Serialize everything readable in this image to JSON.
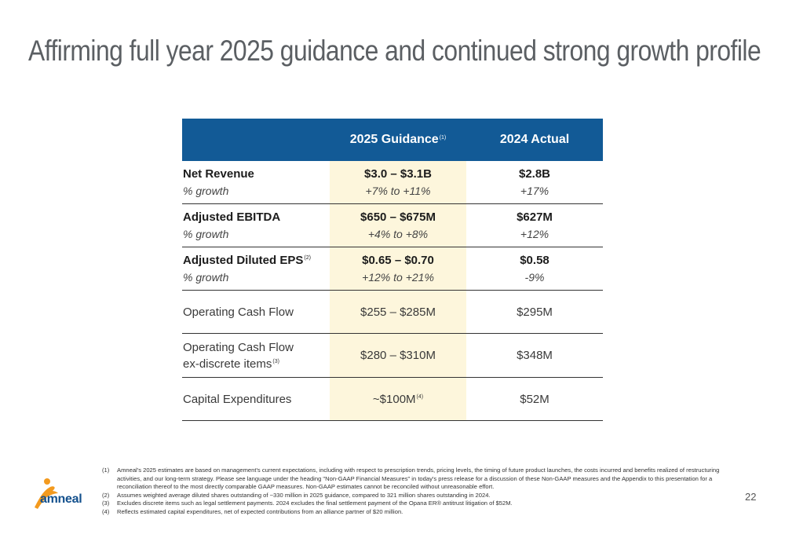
{
  "title": "Affirming full year 2025 guidance and continued strong growth profile",
  "table": {
    "header": {
      "col1": "",
      "col2": "2025 Guidance",
      "col2_fn": "(1)",
      "col3": "2024 Actual"
    },
    "rows": [
      {
        "label": "Net Revenue",
        "sub": "% growth",
        "g": "$3.0 – $3.1B",
        "g_sub": "+7% to +11%",
        "a": "$2.8B",
        "a_sub": "+17%"
      },
      {
        "label": "Adjusted EBITDA",
        "sub": "% growth",
        "g": "$650 – $675M",
        "g_sub": "+4% to +8%",
        "a": "$627M",
        "a_sub": "+12%"
      },
      {
        "label": "Adjusted Diluted EPS",
        "label_fn": "(2)",
        "sub": "% growth",
        "g": "$0.65 – $0.70",
        "g_sub": "+12% to +21%",
        "a": "$0.58",
        "a_sub": "-9%"
      },
      {
        "label": "Operating Cash Flow",
        "g": "$255 – $285M",
        "a": "$295M"
      },
      {
        "label": "Operating Cash Flow",
        "label2": "ex-discrete items",
        "label_fn": "(3)",
        "g": "$280 – $310M",
        "a": "$348M"
      },
      {
        "label": "Capital Expenditures",
        "g": "~$100M",
        "g_fn": "(4)",
        "a": "$52M"
      }
    ]
  },
  "footnotes": [
    {
      "num": "(1)",
      "text": "Amneal's 2025 estimates are based on management's current expectations, including with respect to prescription trends, pricing levels, the timing of future product launches, the costs incurred and benefits realized of restructuring activities, and our long-term strategy. Please see language under the heading \"Non-GAAP Financial Measures\" in today's press release for a discussion of these Non-GAAP measures and the Appendix to this presentation for a reconciliation thereof to the most directly comparable GAAP measures. Non-GAAP estimates cannot be reconciled without unreasonable effort."
    },
    {
      "num": "(2)",
      "text": "Assumes weighted average diluted shares outstanding of ~330 million in 2025 guidance, compared to 321 million shares outstanding in 2024."
    },
    {
      "num": "(3)",
      "text": "Excludes discrete items such as legal settlement payments. 2024 excludes the final settlement payment of the Opana ER® antitrust litigation of $52M."
    },
    {
      "num": "(4)",
      "text": "Reflects estimated capital expenditures, net of expected contributions from an alliance partner of $20 million."
    }
  ],
  "logo": {
    "word": "amneal",
    "mark": "®"
  },
  "page_number": "22",
  "colors": {
    "header": "#125a96",
    "guidance_bg": "#fdf6dc",
    "title": "#5b5f63",
    "logo_orange": "#f39a1e",
    "logo_blue": "#13508d"
  }
}
